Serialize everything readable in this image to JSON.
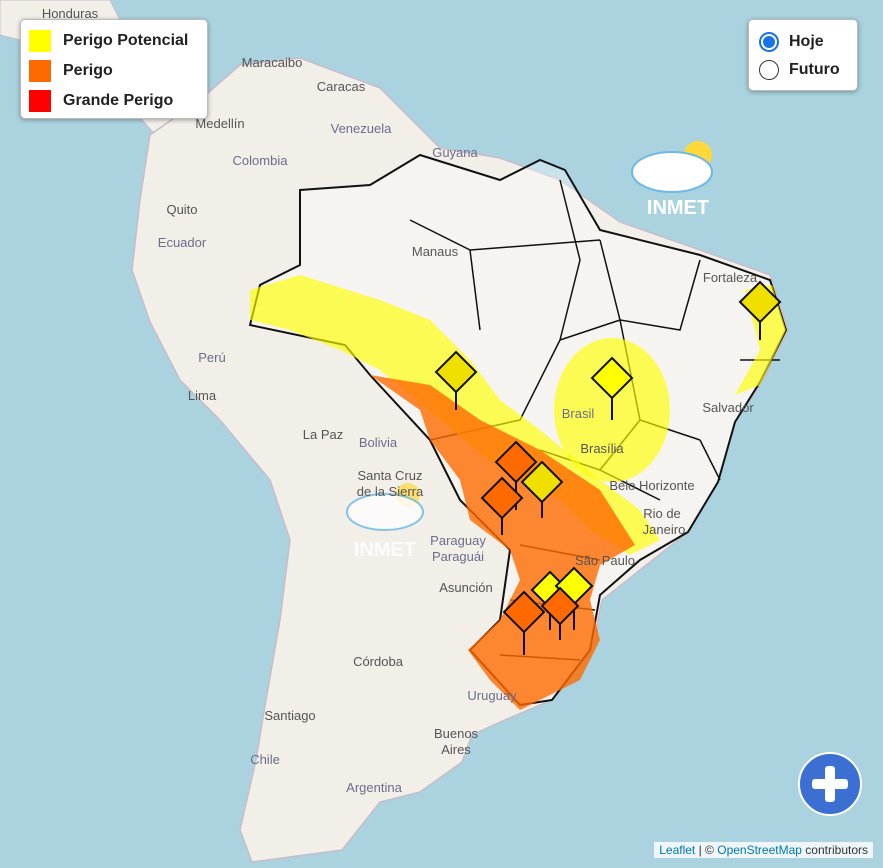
{
  "legend": [
    {
      "label": "Perigo Potencial",
      "color": "#ffff00"
    },
    {
      "label": "Perigo",
      "color": "#ff6a00"
    },
    {
      "label": "Grande Perigo",
      "color": "#ff0000"
    }
  ],
  "period_options": [
    {
      "label": "Hoje",
      "checked": true
    },
    {
      "label": "Futuro",
      "checked": false
    }
  ],
  "map_labels": {
    "honduras": "Honduras",
    "maracaibo": "Maracaibo",
    "caracas": "Caracas",
    "medellin": "Medellín",
    "venezuela": "Venezuela",
    "guyana": "Guyana",
    "colombia": "Colombia",
    "quito": "Quito",
    "ecuador": "Ecuador",
    "manaus": "Manaus",
    "fortaleza": "Fortaleza",
    "peru": "Perú",
    "lima": "Lima",
    "la_paz": "La Paz",
    "bolivia": "Bolivia",
    "brasil": "Brasil",
    "brasilia": "Brasília",
    "salvador": "Salvador",
    "santa_cruz": "Santa Cruz",
    "la_sierra": "de la Sierra",
    "belo_horizonte": "Belo Horizonte",
    "rio": "Rio de",
    "janeiro": "Janeiro",
    "paraguay": "Paraguay",
    "paraguai": "Paraguái",
    "asuncion": "Asunción",
    "sao_paulo": "São Paulo",
    "cordoba": "Córdoba",
    "uruguay": "Uruguay",
    "santiago": "Santiago",
    "buenos": "Buenos",
    "aires": "Aires",
    "chile": "Chile",
    "argentina": "Argentina"
  },
  "watermark": "INMET",
  "attribution": {
    "leaflet": "Leaflet",
    "separator": "| ©",
    "osm": "OpenStreetMap",
    "rest": "contributors"
  }
}
